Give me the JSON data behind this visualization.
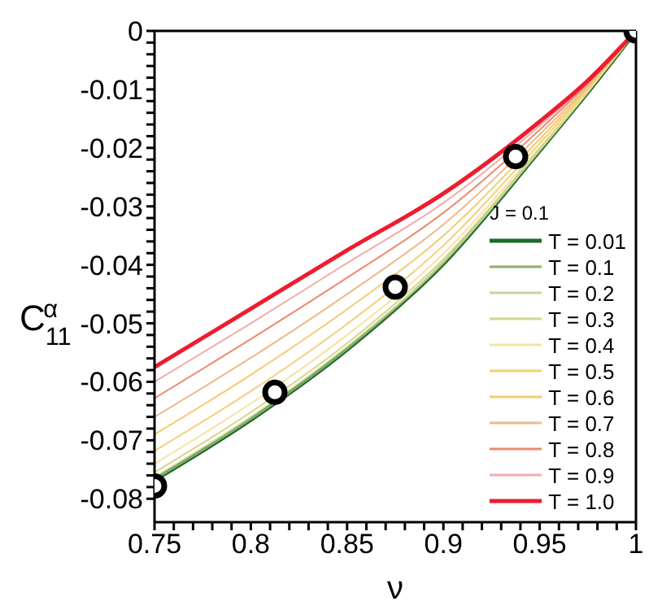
{
  "chart_data": {
    "type": "line",
    "xlabel": "ν",
    "ylabel": "C$_{11}$$^{α}$",
    "legend_title": "J = 0.1",
    "legend": "bottom right",
    "marker": "none",
    "line_style": "solid",
    "x": [
      0.75,
      0.8,
      0.85,
      0.9,
      0.95,
      0.975,
      1
    ],
    "xlim": [
      0.75,
      1
    ],
    "ylim": [
      -0.084,
      0
    ],
    "xticks": [
      0.75,
      {
        "value": 0.76,
        "label": null
      },
      {
        "value": 0.77,
        "label": null
      },
      {
        "value": 0.78,
        "label": null
      },
      {
        "value": 0.79,
        "label": null
      },
      0.8,
      {
        "value": 0.81,
        "label": null
      },
      {
        "value": 0.82,
        "label": null
      },
      {
        "value": 0.83,
        "label": null
      },
      {
        "value": 0.84,
        "label": null
      },
      0.85,
      {
        "value": 0.86,
        "label": null
      },
      {
        "value": 0.87,
        "label": null
      },
      {
        "value": 0.88,
        "label": null
      },
      {
        "value": 0.89,
        "label": null
      },
      0.9,
      {
        "value": 0.91,
        "label": null
      },
      {
        "value": 0.92,
        "label": null
      },
      {
        "value": 0.93,
        "label": null
      },
      {
        "value": 0.94,
        "label": null
      },
      0.95,
      {
        "value": 0.96,
        "label": null
      },
      {
        "value": 0.97,
        "label": null
      },
      {
        "value": 0.98,
        "label": null
      },
      {
        "value": 0.99,
        "label": null
      },
      1
    ],
    "yticks": [
      -0.08,
      {
        "value": -0.078,
        "label": null
      },
      {
        "value": -0.076,
        "label": null
      },
      {
        "value": -0.074,
        "label": null
      },
      {
        "value": -0.072,
        "label": null
      },
      -0.07,
      {
        "value": -0.068,
        "label": null
      },
      {
        "value": -0.066,
        "label": null
      },
      {
        "value": -0.064,
        "label": null
      },
      {
        "value": -0.062,
        "label": null
      },
      -0.06,
      {
        "value": -0.058,
        "label": null
      },
      {
        "value": -0.056,
        "label": null
      },
      {
        "value": -0.054,
        "label": null
      },
      {
        "value": -0.052,
        "label": null
      },
      -0.05,
      {
        "value": -0.048,
        "label": null
      },
      {
        "value": -0.046,
        "label": null
      },
      {
        "value": -0.044,
        "label": null
      },
      {
        "value": -0.042,
        "label": null
      },
      -0.04,
      {
        "value": -0.038,
        "label": null
      },
      {
        "value": -0.036,
        "label": null
      },
      {
        "value": -0.034,
        "label": null
      },
      {
        "value": -0.032,
        "label": null
      },
      -0.03,
      {
        "value": -0.028,
        "label": null
      },
      {
        "value": -0.026,
        "label": null
      },
      {
        "value": -0.024,
        "label": null
      },
      {
        "value": -0.022,
        "label": null
      },
      -0.02,
      {
        "value": -0.018,
        "label": null
      },
      {
        "value": -0.016,
        "label": null
      },
      {
        "value": -0.014,
        "label": null
      },
      {
        "value": -0.012,
        "label": null
      },
      -0.01,
      {
        "value": -0.008,
        "label": null
      },
      {
        "value": -0.006,
        "label": null
      },
      {
        "value": -0.004,
        "label": null
      },
      {
        "value": -0.002,
        "label": null
      },
      0
    ],
    "series": [
      {
        "name": "T = 0.01",
        "color": "#1e6b2a",
        "values": [
          -0.0768,
          -0.0665,
          -0.0545,
          -0.0398,
          -0.0205,
          -0.0105,
          0
        ]
      },
      {
        "name": "T = 0.1",
        "color": "#8ab06a",
        "values": [
          -0.0767,
          -0.0664,
          -0.0544,
          -0.0397,
          -0.0205,
          -0.0105,
          0
        ]
      },
      {
        "name": "T = 0.2",
        "color": "#c8d49a",
        "values": [
          -0.0763,
          -0.066,
          -0.054,
          -0.0395,
          -0.0204,
          -0.0104,
          0
        ]
      },
      {
        "name": "T = 0.3",
        "color": "#d6d68c",
        "values": [
          -0.0755,
          -0.0652,
          -0.0534,
          -0.039,
          -0.0202,
          -0.0104,
          0
        ]
      },
      {
        "name": "T = 0.4",
        "color": "#f5e3a0",
        "values": [
          -0.074,
          -0.0637,
          -0.052,
          -0.0381,
          -0.0198,
          -0.0102,
          0
        ]
      },
      {
        "name": "T = 0.5",
        "color": "#f3d07a",
        "values": [
          -0.0718,
          -0.0616,
          -0.0501,
          -0.0367,
          -0.0192,
          -0.01,
          0
        ]
      },
      {
        "name": "T = 0.6",
        "color": "#f3cc6e",
        "values": [
          -0.069,
          -0.0588,
          -0.0476,
          -0.035,
          -0.0185,
          -0.0097,
          0
        ]
      },
      {
        "name": "T = 0.7",
        "color": "#f0b888",
        "values": [
          -0.066,
          -0.0559,
          -0.045,
          -0.0331,
          -0.0177,
          -0.0094,
          0
        ]
      },
      {
        "name": "T = 0.8",
        "color": "#ee8a6e",
        "values": [
          -0.0628,
          -0.0527,
          -0.0422,
          -0.0311,
          -0.0169,
          -0.009,
          0
        ]
      },
      {
        "name": "T = 0.9",
        "color": "#f5aaaa",
        "values": [
          -0.06,
          -0.05,
          -0.0397,
          -0.0294,
          -0.0162,
          -0.0088,
          0
        ]
      },
      {
        "name": "T = 1.0",
        "color": "#ee1c2e",
        "values": [
          -0.0575,
          -0.0475,
          -0.0375,
          -0.0278,
          -0.0155,
          -0.0085,
          0
        ]
      },
      {
        "type": "scatter",
        "marker": "circle",
        "color": "#000000",
        "x": [
          0.75,
          0.8125,
          0.875,
          0.9375,
          1
        ],
        "values": [
          -0.0778,
          -0.0618,
          -0.0438,
          -0.0215,
          0
        ]
      }
    ]
  }
}
